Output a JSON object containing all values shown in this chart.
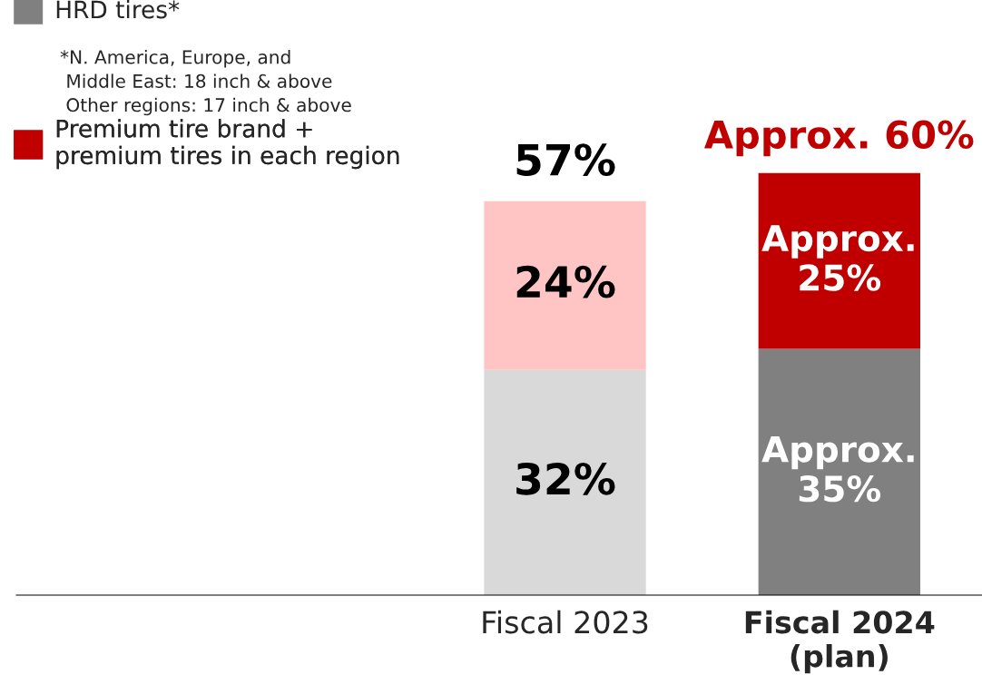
{
  "chart_data": {
    "type": "bar",
    "stacked": true,
    "categories": [
      "Fiscal 2023",
      "Fiscal 2024\n(plan)"
    ],
    "series": [
      {
        "name": "HRD tires*",
        "color": "#808080",
        "colors": [
          "#d9d9d9",
          "#808080"
        ],
        "values": [
          32,
          35
        ],
        "value_labels": [
          "32%",
          "Approx.\n35%"
        ]
      },
      {
        "name": "Premium tire brand +\npremium tires in each region",
        "color": "#c00000",
        "colors": [
          "#ffc5c5",
          "#c00000"
        ],
        "values": [
          24,
          25
        ],
        "value_labels": [
          "24%",
          "Approx.\n25%"
        ]
      }
    ],
    "totals": [
      "57%",
      "Approx. 60%"
    ],
    "annotations": [
      "*N. America, Europe, and\n Middle East: 18 inch & above\n Other regions: 17 inch & above"
    ],
    "tick_labels": "x",
    "legend": "top left",
    "grid": false
  }
}
